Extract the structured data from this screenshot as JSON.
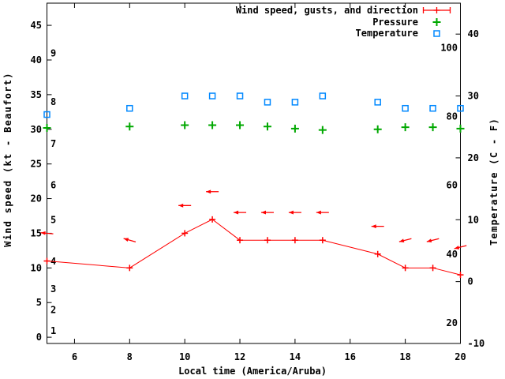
{
  "chart_data": {
    "type": "line",
    "title": "",
    "xlabel": "Local time (America/Aruba)",
    "ylabel_left": "Wind speed (kt - Beaufort)",
    "ylabel_right": "Temperature (C - F)",
    "x_range": [
      5,
      20
    ],
    "x_ticks": [
      6,
      8,
      10,
      12,
      14,
      16,
      18,
      20
    ],
    "y_left_range": [
      -0.9,
      48.2
    ],
    "y_left_ticks_kt": [
      0,
      5,
      10,
      15,
      20,
      25,
      30,
      35,
      40,
      45
    ],
    "beaufort_labels": [
      {
        "label": "1",
        "kt": 1
      },
      {
        "label": "2",
        "kt": 4
      },
      {
        "label": "3",
        "kt": 7
      },
      {
        "label": "4",
        "kt": 11
      },
      {
        "label": "5",
        "kt": 17
      },
      {
        "label": "6",
        "kt": 22
      },
      {
        "label": "7",
        "kt": 28
      },
      {
        "label": "8",
        "kt": 34
      },
      {
        "label": "9",
        "kt": 41
      }
    ],
    "y_right_range_c": [
      -10,
      45
    ],
    "y_right_ticks_c": [
      -10,
      0,
      10,
      20,
      30,
      40
    ],
    "fahrenheit_inner_labels": [
      20,
      40,
      60,
      80,
      100
    ],
    "hours": [
      5,
      8,
      10,
      11,
      12,
      13,
      14,
      15,
      17,
      18,
      19,
      20
    ],
    "series": [
      {
        "name": "wind_speed_kt",
        "values": [
          11,
          10,
          15,
          17,
          14,
          14,
          14,
          14,
          12,
          10,
          10,
          9
        ]
      },
      {
        "name": "wind_gust_kt",
        "values": [
          15,
          14,
          19,
          21,
          18,
          18,
          18,
          18,
          16,
          14,
          14,
          13
        ],
        "arrow_tilt_deg": [
          5,
          16,
          0,
          0,
          0,
          0,
          0,
          0,
          0,
          -14,
          -14,
          -14
        ]
      },
      {
        "name": "pressure_inHg",
        "values": [
          30.2,
          30.4,
          30.6,
          30.6,
          30.6,
          30.4,
          30.1,
          29.9,
          30.0,
          30.3,
          30.3,
          30.1
        ]
      },
      {
        "name": "temperature_c",
        "values": [
          27,
          28,
          30,
          30,
          30,
          29,
          29,
          30,
          29,
          28,
          28,
          28
        ]
      }
    ],
    "legend_entries": [
      {
        "label": "Wind speed, gusts, and direction",
        "marker": "errorbar-line",
        "color": "#ff0000"
      },
      {
        "label": "Pressure",
        "marker": "plus",
        "color": "#00a800"
      },
      {
        "label": "Temperature",
        "marker": "open-square",
        "color": "#0088ff"
      }
    ],
    "legend_position": "top-right-inside",
    "grid": false,
    "colors": {
      "wind": "#ff0000",
      "pressure": "#00a800",
      "temperature": "#0088ff",
      "axis": "#000000",
      "background": "#ffffff"
    }
  }
}
